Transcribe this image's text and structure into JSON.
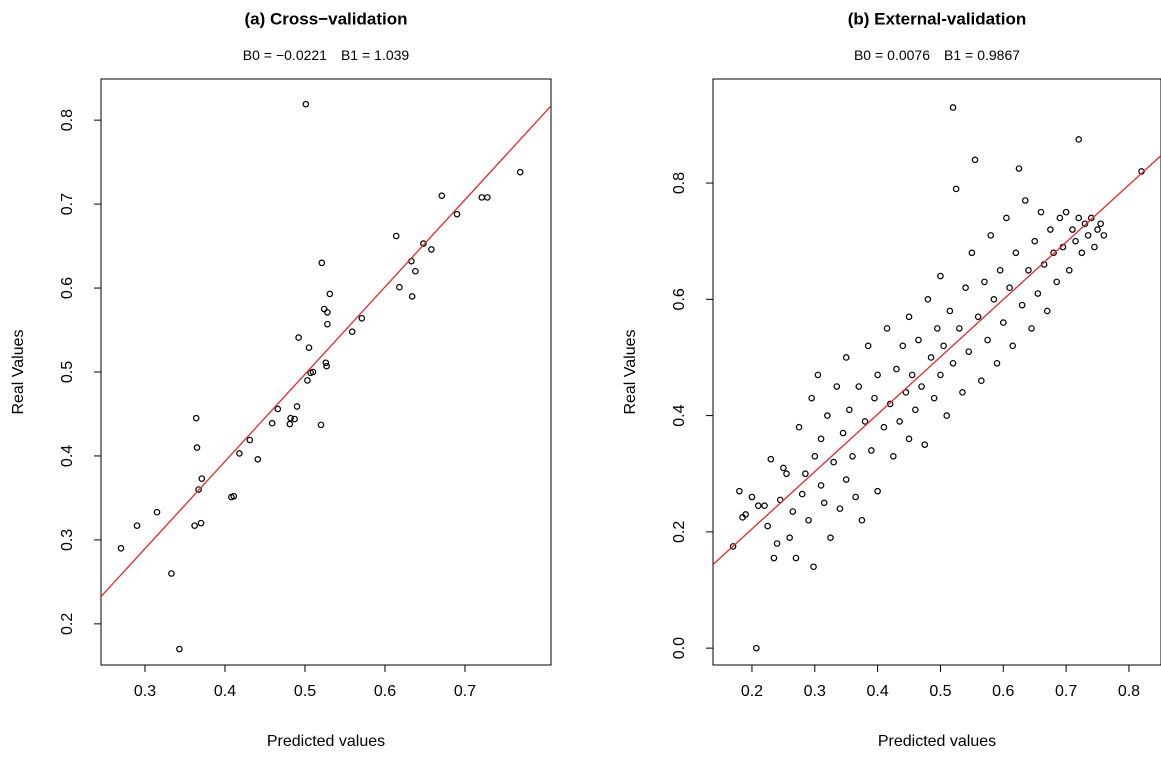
{
  "chart_data": [
    {
      "type": "scatter",
      "title": "(a) Cross−validation",
      "x_label": "Predicted values",
      "y_label": "Real Values",
      "annotations": [
        {
          "label": "B0 =",
          "value": -0.0221,
          "value_label": "−0.0221"
        },
        {
          "label": "B1 =",
          "value": 1.039
        }
      ],
      "color": "#000000",
      "fit_color": "#e8262a",
      "x": [
        0.27,
        0.29,
        0.315,
        0.333,
        0.343,
        0.362,
        0.364,
        0.365,
        0.367,
        0.37,
        0.371,
        0.408,
        0.411,
        0.418,
        0.431,
        0.441,
        0.459,
        0.466,
        0.481,
        0.482,
        0.487,
        0.49,
        0.492,
        0.501,
        0.503,
        0.505,
        0.507,
        0.51,
        0.52,
        0.521,
        0.524,
        0.526,
        0.527,
        0.528,
        0.528,
        0.531,
        0.559,
        0.571,
        0.614,
        0.618,
        0.633,
        0.634,
        0.638,
        0.648,
        0.658,
        0.671,
        0.69,
        0.721,
        0.728,
        0.769
      ],
      "values": [
        0.29,
        0.317,
        0.333,
        0.26,
        0.17,
        0.317,
        0.445,
        0.41,
        0.36,
        0.32,
        0.373,
        0.351,
        0.352,
        0.403,
        0.419,
        0.396,
        0.439,
        0.456,
        0.438,
        0.445,
        0.444,
        0.459,
        0.541,
        0.819,
        0.49,
        0.529,
        0.499,
        0.5,
        0.437,
        0.63,
        0.575,
        0.511,
        0.507,
        0.557,
        0.571,
        0.593,
        0.548,
        0.564,
        0.662,
        0.601,
        0.632,
        0.59,
        0.62,
        0.653,
        0.646,
        0.71,
        0.688,
        0.708,
        0.708,
        0.738
      ],
      "xlim": [
        0.245,
        0.8075
      ],
      "ylim": [
        0.151,
        0.849
      ],
      "xticks": [
        0.3,
        0.4,
        0.5,
        0.6,
        0.7
      ],
      "yticks": [
        0.2,
        0.3,
        0.4,
        0.5,
        0.6,
        0.7,
        0.8
      ]
    },
    {
      "type": "scatter",
      "title": "(b) External-validation",
      "x_label": "Predicted values",
      "y_label": "Real Values",
      "annotations": [
        {
          "label": "B0 =",
          "value": 0.0076
        },
        {
          "label": "B1 =",
          "value": 0.9867
        }
      ],
      "color": "#000000",
      "fit_color": "#e8262a",
      "x": [
        0.17,
        0.18,
        0.185,
        0.19,
        0.2,
        0.207,
        0.21,
        0.22,
        0.225,
        0.23,
        0.235,
        0.24,
        0.245,
        0.25,
        0.255,
        0.26,
        0.265,
        0.27,
        0.275,
        0.28,
        0.285,
        0.29,
        0.295,
        0.298,
        0.3,
        0.305,
        0.31,
        0.31,
        0.315,
        0.32,
        0.325,
        0.33,
        0.335,
        0.34,
        0.345,
        0.35,
        0.35,
        0.355,
        0.36,
        0.365,
        0.37,
        0.375,
        0.38,
        0.385,
        0.39,
        0.395,
        0.4,
        0.4,
        0.41,
        0.415,
        0.42,
        0.425,
        0.43,
        0.435,
        0.44,
        0.445,
        0.45,
        0.45,
        0.455,
        0.46,
        0.465,
        0.47,
        0.475,
        0.48,
        0.485,
        0.49,
        0.495,
        0.5,
        0.5,
        0.505,
        0.51,
        0.515,
        0.52,
        0.52,
        0.525,
        0.53,
        0.535,
        0.54,
        0.545,
        0.55,
        0.555,
        0.56,
        0.565,
        0.57,
        0.575,
        0.58,
        0.585,
        0.59,
        0.595,
        0.6,
        0.605,
        0.61,
        0.615,
        0.62,
        0.625,
        0.63,
        0.635,
        0.64,
        0.645,
        0.65,
        0.655,
        0.66,
        0.665,
        0.67,
        0.675,
        0.68,
        0.685,
        0.69,
        0.695,
        0.7,
        0.705,
        0.71,
        0.715,
        0.72,
        0.72,
        0.725,
        0.73,
        0.735,
        0.74,
        0.745,
        0.75,
        0.755,
        0.76,
        0.82
      ],
      "values": [
        0.175,
        0.27,
        0.225,
        0.23,
        0.26,
        0.0,
        0.245,
        0.245,
        0.21,
        0.325,
        0.155,
        0.18,
        0.255,
        0.31,
        0.3,
        0.19,
        0.235,
        0.155,
        0.38,
        0.265,
        0.3,
        0.22,
        0.43,
        0.14,
        0.33,
        0.47,
        0.28,
        0.36,
        0.25,
        0.4,
        0.19,
        0.32,
        0.45,
        0.24,
        0.37,
        0.29,
        0.5,
        0.41,
        0.33,
        0.26,
        0.45,
        0.22,
        0.39,
        0.52,
        0.34,
        0.43,
        0.27,
        0.47,
        0.38,
        0.55,
        0.42,
        0.33,
        0.48,
        0.39,
        0.52,
        0.44,
        0.36,
        0.57,
        0.47,
        0.41,
        0.53,
        0.45,
        0.35,
        0.6,
        0.5,
        0.43,
        0.55,
        0.47,
        0.64,
        0.52,
        0.4,
        0.58,
        0.93,
        0.49,
        0.79,
        0.55,
        0.44,
        0.62,
        0.51,
        0.68,
        0.84,
        0.57,
        0.46,
        0.63,
        0.53,
        0.71,
        0.6,
        0.49,
        0.65,
        0.56,
        0.74,
        0.62,
        0.52,
        0.68,
        0.825,
        0.59,
        0.77,
        0.65,
        0.55,
        0.7,
        0.61,
        0.75,
        0.66,
        0.58,
        0.72,
        0.68,
        0.63,
        0.74,
        0.69,
        0.75,
        0.65,
        0.72,
        0.7,
        0.875,
        0.74,
        0.68,
        0.73,
        0.71,
        0.74,
        0.69,
        0.72,
        0.73,
        0.71,
        0.82
      ],
      "xlim": [
        0.138,
        0.851
      ],
      "ylim": [
        -0.029,
        0.979
      ],
      "xticks": [
        0.2,
        0.3,
        0.4,
        0.5,
        0.6,
        0.7,
        0.8
      ],
      "yticks": [
        {
          "value": 0,
          "label": "0.0"
        },
        0.2,
        0.4,
        0.6,
        0.8
      ]
    }
  ]
}
